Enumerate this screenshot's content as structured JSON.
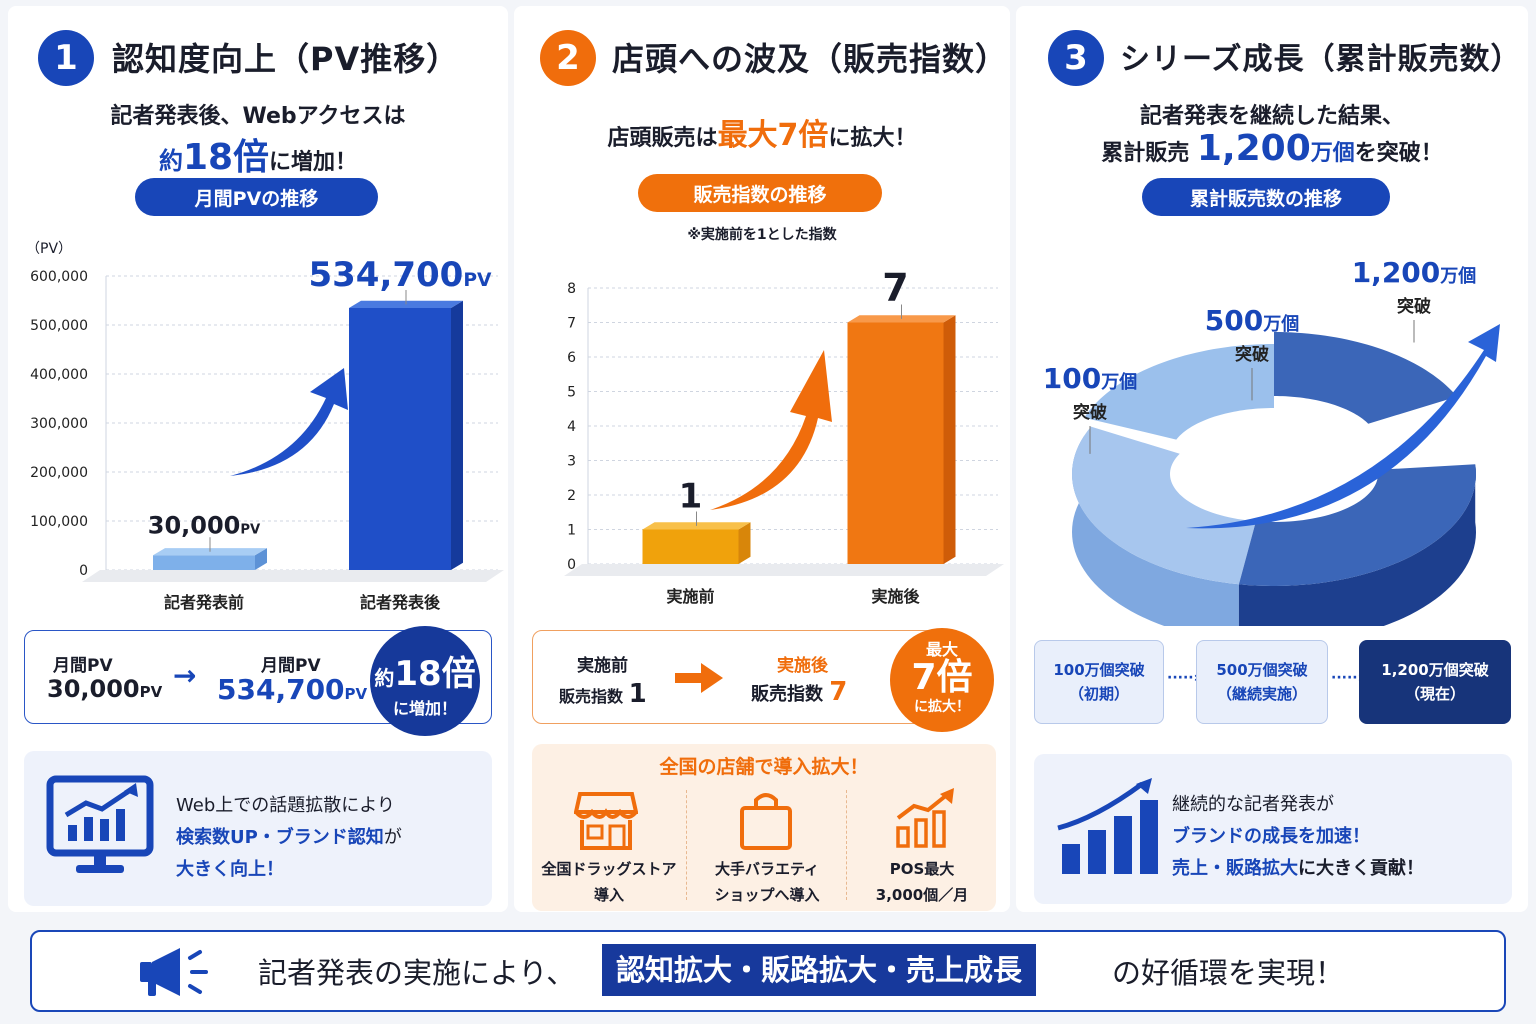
{
  "panels": [
    {
      "num": "1",
      "title": "認知度向上（PV推移）",
      "lead1": "記者発表後、Webアクセスは",
      "lead2_pre": "約",
      "lead2_num": "18倍",
      "lead2_post": "に増加！",
      "pill": "月間PVの推移",
      "unit": "（PV）",
      "compare": {
        "before_label": "月間PV",
        "before_value": "30,000",
        "before_unit": "PV",
        "arrow": "→",
        "after_label": "月間PV",
        "after_value": "534,700",
        "after_unit": "PV",
        "badge_pre": "約",
        "badge_num": "18倍",
        "badge_post": "に増加！"
      },
      "info": [
        "Web上での話題拡散により",
        "検索数UP・ブランド認知",
        "が",
        "大きく向上！"
      ]
    },
    {
      "num": "2",
      "title": "店頭への波及（販売指数）",
      "lead_pre": "店頭販売は",
      "lead_hi": "最大7倍",
      "lead_post": "に拡大！",
      "pill": "販売指数の推移",
      "note": "※実施前を1とした指数",
      "compare": {
        "before_label": "実施前",
        "before_value_label": "販売指数",
        "before_value": "1",
        "after_label": "実施後",
        "after_value_label": "販売指数",
        "after_value": "7",
        "badge_top": "最大",
        "badge_num": "7倍",
        "badge_post": "に拡大！"
      },
      "stores": {
        "title": "全国の店舗で導入拡大！",
        "items": [
          {
            "icon": "store-icon",
            "line1": "全国ドラッグストア",
            "line2": "導入"
          },
          {
            "icon": "shopping-bag-icon",
            "line1": "大手バラエティ",
            "line2": "ショップへ導入"
          },
          {
            "icon": "growth-chart-icon",
            "line1": "POS最大",
            "line2": "3,000個／月"
          }
        ]
      }
    },
    {
      "num": "3",
      "title": "シリーズ成長（累計販売数）",
      "lead1": "記者発表を継続した結果、",
      "lead2_pre": "累計販売",
      "lead2_num": "1,200",
      "lead2_unit": "万個",
      "lead2_post": "を突破！",
      "pill": "累計販売数の推移",
      "milestones": [
        {
          "num": "100",
          "unit": "万個",
          "sub": "突破"
        },
        {
          "num": "500",
          "unit": "万個",
          "sub": "突破"
        },
        {
          "num": "1,200",
          "unit": "万個",
          "sub": "突破"
        }
      ],
      "stages": [
        {
          "line1": "100万個突破",
          "line2": "（初期）"
        },
        {
          "line1": "500万個突破",
          "line2": "（継続実施）"
        },
        {
          "line1": "1,200万個突破",
          "line2": "（現在）"
        }
      ],
      "info": [
        "継続的な記者発表が",
        "ブランドの成長を加速！",
        "売上・販路拡大",
        "に大きく貢献！"
      ]
    }
  ],
  "bottom": {
    "pre": "記者発表の実施により、",
    "hi": "認知拡大・販路拡大・売上成長",
    "post": "の好循環を実現！"
  },
  "colors": {
    "blue": "#1846b8",
    "orange": "#f06d0c",
    "navy": "#17347a"
  },
  "chart_data": [
    {
      "type": "bar",
      "title": "月間PVの推移",
      "ylabel": "（PV）",
      "categories": [
        "記者発表前",
        "記者発表後"
      ],
      "values": [
        30000,
        534700
      ],
      "data_labels": [
        "30,000",
        "534,700"
      ],
      "data_label_unit": "PV",
      "ylim": [
        0,
        600000
      ],
      "yticks": [
        0,
        100000,
        200000,
        300000,
        400000,
        500000,
        600000
      ],
      "ytick_labels": [
        "0",
        "100,000",
        "200,000",
        "300,000",
        "400,000",
        "500,000",
        "600,000"
      ],
      "grid": true
    },
    {
      "type": "bar",
      "title": "販売指数の推移",
      "categories": [
        "実施前",
        "実施後"
      ],
      "values": [
        1,
        7
      ],
      "data_labels": [
        "1",
        "7"
      ],
      "ylim": [
        0,
        8
      ],
      "yticks": [
        0,
        1,
        2,
        3,
        4,
        5,
        6,
        7,
        8
      ],
      "ytick_labels": [
        "0",
        "1",
        "2",
        "3",
        "4",
        "5",
        "6",
        "7",
        "8"
      ],
      "grid": true
    },
    {
      "type": "pie",
      "title": "累計販売数の推移",
      "categories": [
        "100万個",
        "500万個",
        "1,200万個"
      ],
      "values": [
        100,
        500,
        1200
      ]
    }
  ]
}
